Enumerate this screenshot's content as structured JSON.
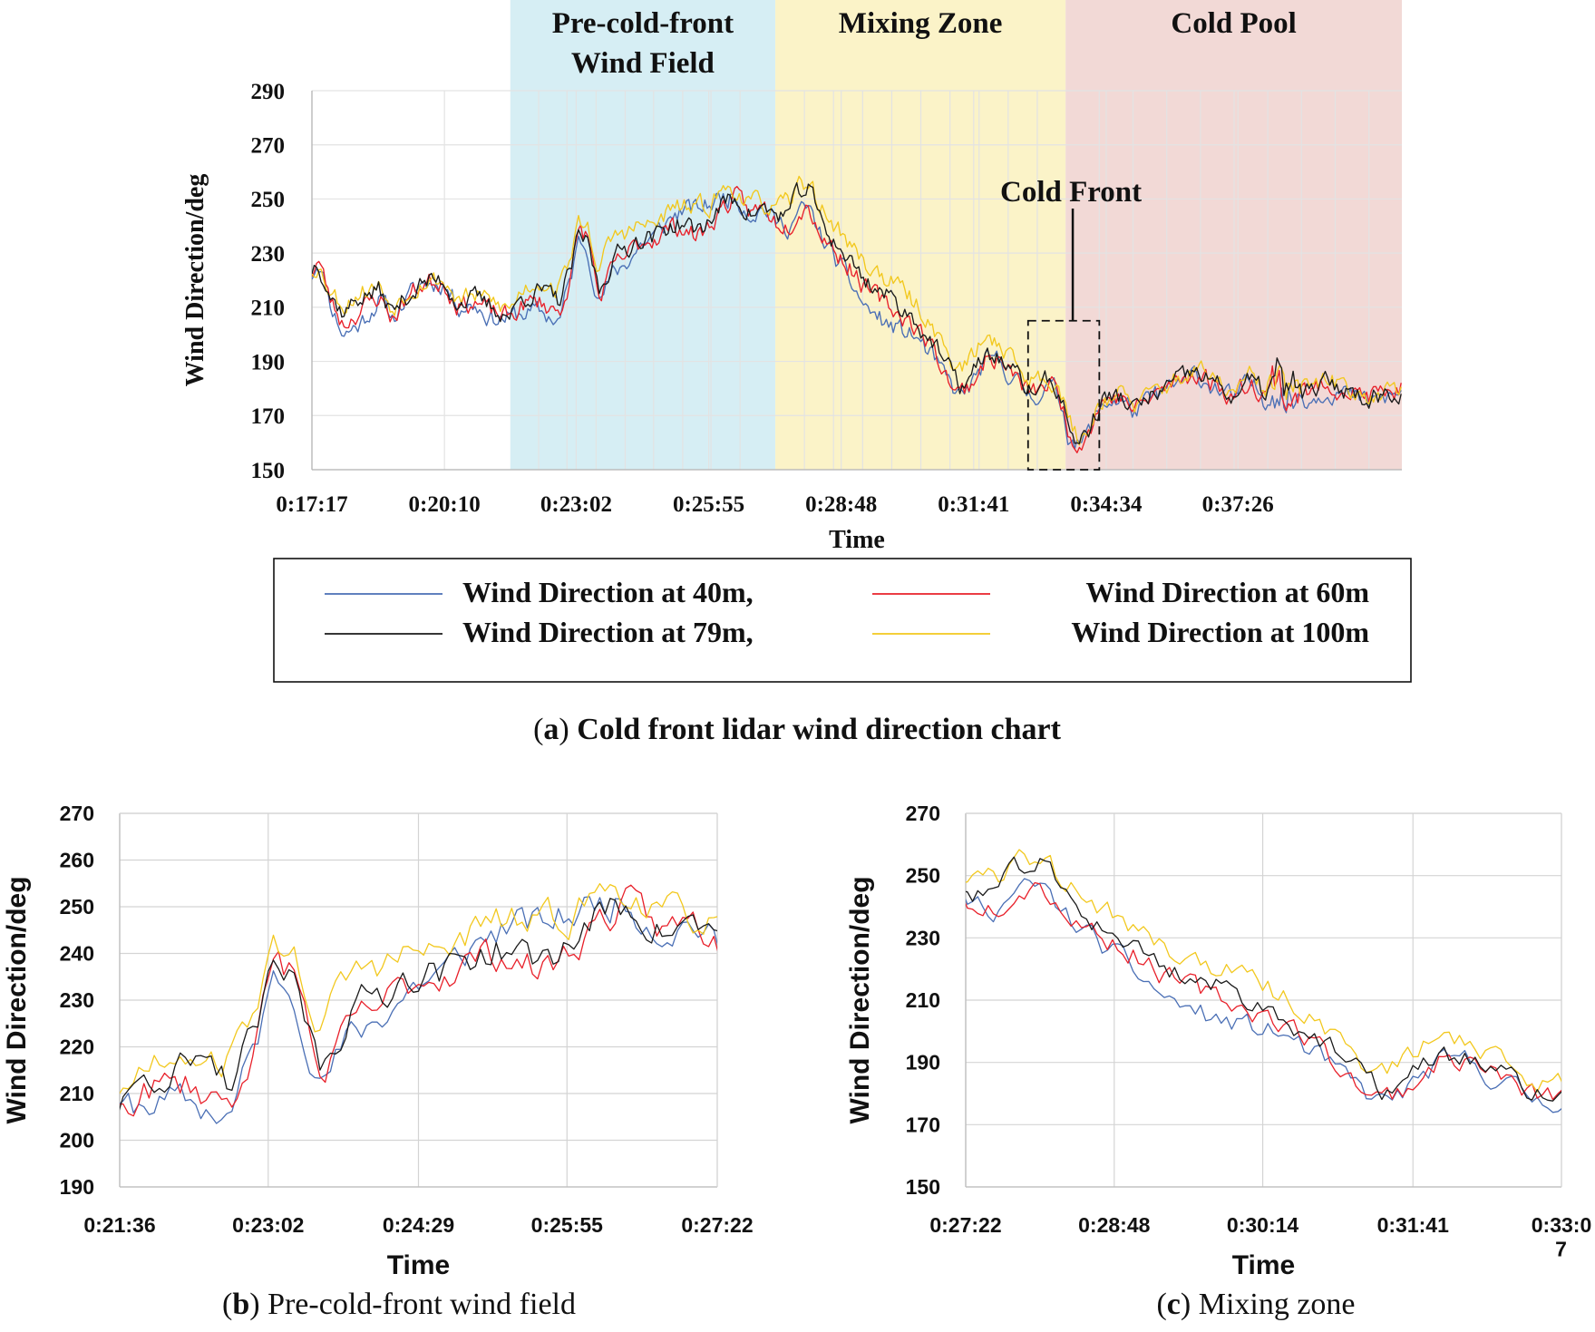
{
  "colors": {
    "s40": "#4a6fb5",
    "s60": "#e8202a",
    "s79": "#1a1a1a",
    "s100": "#f2c81e",
    "zone_pre": "#d6eef4",
    "zone_mix": "#fbf3c8",
    "zone_pool": "#f2d9d6",
    "grid": "#cfcfcf",
    "grid_white": "#ffffff"
  },
  "chart_data": [
    {
      "type": "line",
      "panel": "a",
      "ylabel": "Wind Direction/deg",
      "xlabel": "Time",
      "ylim": [
        150,
        290
      ],
      "yticks": [
        150,
        170,
        190,
        210,
        230,
        250,
        270,
        290
      ],
      "x_unit": "seconds",
      "xlim": [
        1037,
        2460
      ],
      "xticks": [
        "0:17:17",
        "0:20:10",
        "0:23:02",
        "0:25:55",
        "0:28:48",
        "0:31:41",
        "0:34:34",
        "0:37:26"
      ],
      "xtick_seconds": [
        1037,
        1210,
        1382,
        1555,
        1728,
        1901,
        2074,
        2246
      ],
      "zones": [
        {
          "label_lines": [
            "Pre-cold-front",
            "Wind Field"
          ],
          "x_start": 1296,
          "x_end": 1642,
          "color_key": "zone_pre"
        },
        {
          "label_lines": [
            "Mixing Zone"
          ],
          "x_start": 1642,
          "x_end": 2021,
          "color_key": "zone_mix"
        },
        {
          "label_lines": [
            "Cold Pool"
          ],
          "x_start": 2021,
          "x_end": 2460,
          "color_key": "zone_pool"
        }
      ],
      "annotation": {
        "text": "Cold Front",
        "box_x": [
          1972,
          2065
        ],
        "box_y": [
          150,
          205
        ]
      },
      "series_anchor_x": [
        1037,
        1045,
        1062,
        1078,
        1100,
        1125,
        1142,
        1160,
        1182,
        1208,
        1228,
        1250,
        1272,
        1296,
        1312,
        1335,
        1360,
        1375,
        1386,
        1398,
        1412,
        1430,
        1448,
        1466,
        1484,
        1502,
        1520,
        1538,
        1556,
        1572,
        1590,
        1610,
        1628,
        1642,
        1660,
        1673,
        1686,
        1700,
        1720,
        1740,
        1760,
        1785,
        1808,
        1826,
        1845,
        1866,
        1882,
        1898,
        1914,
        1932,
        1950,
        1964,
        1976,
        1988,
        1998,
        2008,
        2016,
        2024,
        2038,
        2050,
        2070,
        2092,
        2112,
        2138,
        2165,
        2190,
        2215,
        2240,
        2262,
        2282,
        2298,
        2310,
        2322,
        2340,
        2362,
        2385,
        2410,
        2435,
        2460
      ],
      "series": [
        {
          "name": "Wind Direction at 40m,",
          "color_key": "s40",
          "seed": 11,
          "offsets": [
            -2,
            0,
            -3,
            -8,
            -10,
            -3,
            -2,
            -1,
            0,
            -1,
            -1,
            -2,
            -4,
            -1,
            -6,
            -8,
            -7,
            -3,
            -1,
            -2,
            -4,
            -6,
            -5,
            -3,
            0,
            2,
            5,
            8,
            6,
            3,
            1,
            0,
            1,
            -3,
            -5,
            -7,
            -8,
            -6,
            -6,
            -8,
            -10,
            -11,
            -9,
            -6,
            -6,
            -5,
            -4,
            -3,
            -3,
            -2,
            -2,
            -2,
            -2,
            -2,
            -2,
            -2,
            -2,
            -2,
            -1,
            -1,
            -1,
            -1,
            -1,
            -1,
            -1,
            -1,
            -1,
            -1,
            -1,
            -2,
            -2,
            -2,
            -2,
            -2,
            -2,
            -2,
            -2,
            -2,
            -2
          ]
        },
        {
          "name": "Wind Direction at 60m",
          "color_key": "s60",
          "seed": 23,
          "offsets": [
            -1,
            0,
            -2,
            -4,
            -5,
            -2,
            -2,
            -1,
            0,
            0,
            -1,
            -1,
            -2,
            -1,
            -3,
            -4,
            -4,
            -2,
            2,
            3,
            -3,
            -4,
            -3,
            -2,
            0,
            -1,
            -1,
            -2,
            -2,
            -1,
            0,
            0,
            1,
            -2,
            -4,
            -5,
            -6,
            -5,
            -3,
            -2,
            -3,
            -4,
            -3,
            -2,
            -2,
            -3,
            -3,
            -2,
            -2,
            -1,
            -1,
            -1,
            -1,
            -1,
            -1,
            -1,
            -1,
            -1,
            0,
            0,
            0,
            0,
            0,
            0,
            0,
            0,
            0,
            0,
            0,
            0,
            0,
            0,
            0,
            0,
            0,
            0,
            0,
            0,
            0
          ]
        },
        {
          "name": "Wind Direction at 79m,",
          "color_key": "s79",
          "seed": 37,
          "offsets": [
            0,
            0,
            0,
            0,
            0,
            0,
            0,
            0,
            0,
            0,
            0,
            0,
            0,
            0,
            0,
            0,
            0,
            0,
            0,
            0,
            0,
            0,
            0,
            0,
            0,
            0,
            0,
            0,
            0,
            0,
            0,
            0,
            0,
            0,
            0,
            0,
            0,
            0,
            0,
            0,
            0,
            0,
            0,
            0,
            0,
            0,
            0,
            0,
            0,
            0,
            0,
            0,
            0,
            0,
            0,
            0,
            0,
            0,
            0,
            0,
            0,
            0,
            0,
            0,
            0,
            0,
            0,
            0,
            0,
            0,
            0,
            0,
            0,
            0,
            0,
            0,
            0,
            0,
            0
          ]
        },
        {
          "name": "Wind Direction at 100m",
          "color_key": "s100",
          "seed": 53,
          "offsets": [
            0,
            -2,
            2,
            3,
            2,
            2,
            2,
            2,
            1,
            0,
            1,
            1,
            2,
            2,
            3,
            4,
            5,
            6,
            5,
            6,
            8,
            8,
            6,
            4,
            4,
            5,
            6,
            8,
            6,
            5,
            4,
            3,
            2,
            2,
            3,
            3,
            3,
            4,
            6,
            6,
            6,
            6,
            6,
            6,
            6,
            6,
            5,
            7,
            6,
            6,
            5,
            4,
            4,
            3,
            2,
            2,
            2,
            2,
            1,
            1,
            1,
            1,
            1,
            1,
            1,
            1,
            1,
            1,
            1,
            1,
            1,
            1,
            1,
            1,
            1,
            1,
            1,
            1,
            1
          ]
        }
      ],
      "base_values": [
        224,
        228,
        214,
        208,
        214,
        216,
        208,
        214,
        219,
        220,
        212,
        213,
        210,
        207,
        214,
        216,
        212,
        224,
        236,
        233,
        216,
        228,
        232,
        236,
        236,
        240,
        241,
        238,
        242,
        248,
        250,
        245,
        246,
        244,
        245,
        252,
        254,
        243,
        234,
        227,
        220,
        215,
        210,
        205,
        198,
        188,
        181,
        184,
        192,
        192,
        187,
        182,
        179,
        181,
        183,
        181,
        176,
        166,
        160,
        164,
        176,
        177,
        172,
        178,
        182,
        186,
        182,
        177,
        183,
        178,
        185,
        176,
        180,
        178,
        182,
        180,
        177,
        178,
        180
      ],
      "legend_left": [
        "Wind Direction at 40m,",
        "Wind Direction at 79m,"
      ],
      "legend_right": [
        "Wind Direction at 60m",
        "Wind Direction at 100m"
      ],
      "caption_letter": "a",
      "caption_text": " Cold front lidar wind direction chart"
    },
    {
      "type": "line",
      "panel": "b",
      "ylabel": "Wind Direction/deg",
      "xlabel": "Time",
      "ylim": [
        190,
        270
      ],
      "yticks": [
        190,
        200,
        210,
        220,
        230,
        240,
        250,
        260,
        270
      ],
      "xlim": [
        1296,
        1642
      ],
      "xticks": [
        "0:21:36",
        "0:23:02",
        "0:24:29",
        "0:25:55",
        "0:27:22"
      ],
      "xtick_seconds": [
        1296,
        1382,
        1469,
        1555,
        1642
      ],
      "caption_letter": "b",
      "caption_text": " Pre-cold-front wind field"
    },
    {
      "type": "line",
      "panel": "c",
      "ylabel": "Wind Direction/deg",
      "xlabel": "Time",
      "ylim": [
        150,
        270
      ],
      "yticks": [
        150,
        170,
        190,
        210,
        230,
        250,
        270
      ],
      "xlim": [
        1642,
        1987
      ],
      "xticks": [
        "0:27:22",
        "0:28:48",
        "0:30:14",
        "0:31:41",
        "0:33:0\n7"
      ],
      "xtick_lines": [
        [
          "0:27:22"
        ],
        [
          "0:28:48"
        ],
        [
          "0:30:14"
        ],
        [
          "0:31:41"
        ],
        [
          "0:33:0",
          "7"
        ]
      ],
      "xtick_seconds": [
        1642,
        1728,
        1814,
        1901,
        1987
      ],
      "caption_letter": "c",
      "caption_text": " Mixing zone"
    }
  ]
}
